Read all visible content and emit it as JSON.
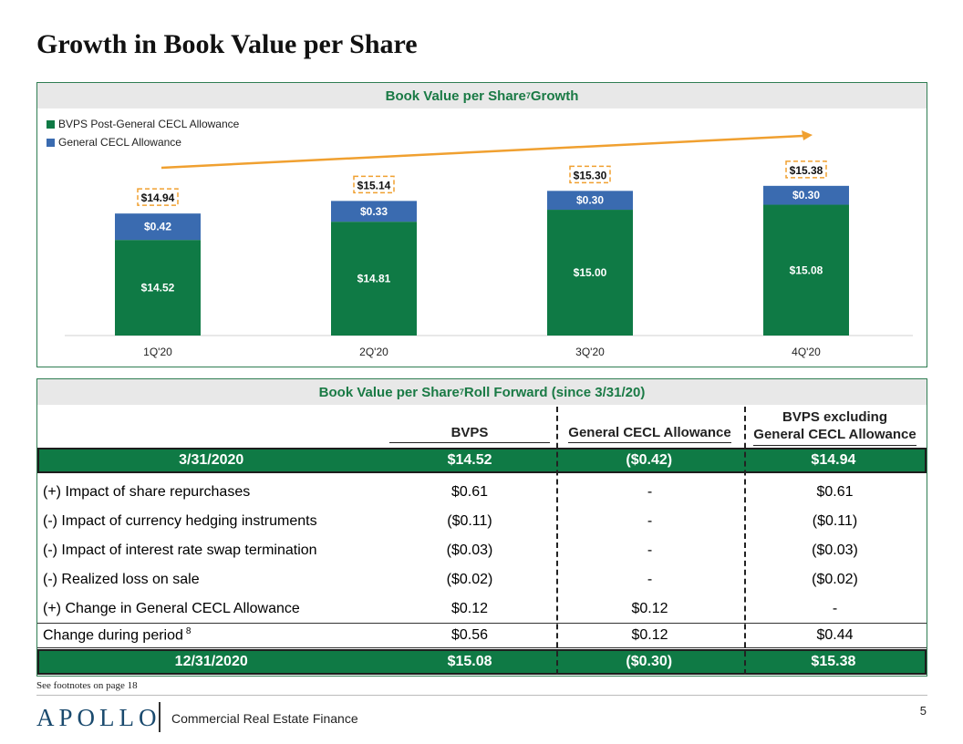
{
  "page": {
    "title": "Growth in Book Value per Share",
    "footnote": "See footnotes on page 18",
    "logo": "APOLLO",
    "footer_subtitle": "Commercial Real Estate Finance",
    "page_number": "5"
  },
  "colors": {
    "green": "#0f7a45",
    "blue": "#3a6bb0",
    "arrow": "#f0a030",
    "header_text": "#1a7a45"
  },
  "chart_data": {
    "type": "bar",
    "stacked": true,
    "title": "Book Value per Share",
    "title_sup": "7",
    "title_suffix": " Growth",
    "categories": [
      "1Q'20",
      "2Q'20",
      "3Q'20",
      "4Q'20"
    ],
    "series": [
      {
        "name": "BVPS Post-General CECL Allowance",
        "color": "#0f7a45",
        "values": [
          14.52,
          14.81,
          15.0,
          15.08
        ],
        "labels": [
          "$14.52",
          "$14.81",
          "$15.00",
          "$15.08"
        ]
      },
      {
        "name": "General CECL Allowance",
        "color": "#3a6bb0",
        "values": [
          0.42,
          0.33,
          0.3,
          0.3
        ],
        "labels": [
          "$0.42",
          "$0.33",
          "$0.30",
          "$0.30"
        ]
      }
    ],
    "totals": [
      14.94,
      15.14,
      15.3,
      15.38
    ],
    "total_labels": [
      "$14.94",
      "$15.14",
      "$15.30",
      "$15.38"
    ],
    "trend_arrow": true,
    "legend_position": "top-left"
  },
  "table": {
    "title": "Book Value per Share",
    "title_sup": "7",
    "title_suffix": " Roll Forward (since 3/31/20)",
    "headers": {
      "bvps": "BVPS",
      "cecl": "General CECL Allowance",
      "ex_line1": "BVPS excluding",
      "ex_line2": "General CECL Allowance"
    },
    "start": {
      "label": "3/31/2020",
      "bvps": "$14.52",
      "cecl": "($0.42)",
      "ex": "$14.94"
    },
    "rows": [
      {
        "label": "(+) Impact of share repurchases",
        "bvps": "$0.61",
        "cecl": "-",
        "ex": "$0.61"
      },
      {
        "label": "(-)  Impact of currency hedging instruments",
        "bvps": "($0.11)",
        "cecl": "-",
        "ex": "($0.11)"
      },
      {
        "label": "(-)  Impact of interest rate swap termination",
        "bvps": "($0.03)",
        "cecl": "-",
        "ex": "($0.03)"
      },
      {
        "label": "(-)  Realized loss on sale",
        "bvps": "($0.02)",
        "cecl": "-",
        "ex": "($0.02)"
      },
      {
        "label": "(+) Change in General CECL Allowance",
        "bvps": "$0.12",
        "cecl": "$0.12",
        "ex": "-"
      }
    ],
    "change": {
      "label": "Change during period",
      "sup": "8",
      "bvps": "$0.56",
      "cecl": "$0.12",
      "ex": "$0.44"
    },
    "end": {
      "label": "12/31/2020",
      "bvps": "$15.08",
      "cecl": "($0.30)",
      "ex": "$15.38"
    }
  }
}
